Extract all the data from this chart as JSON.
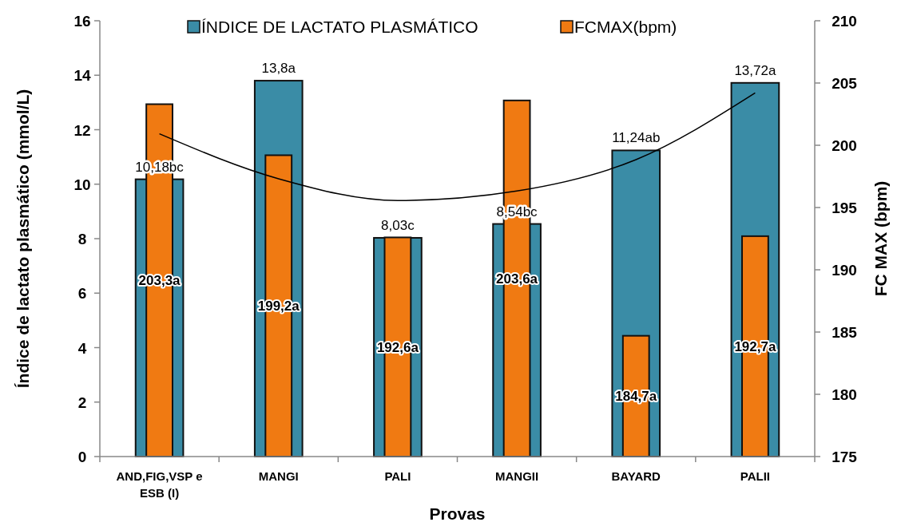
{
  "chart_data": {
    "type": "bar",
    "categories": [
      "AND,FIG,VSP e ESB (I)",
      "MANGI",
      "PALI",
      "MANGII",
      "BAYARD",
      "PALII"
    ],
    "series": [
      {
        "name": "ÍNDICE DE LACTATO PLASMÁTICO",
        "color": "#3a8ca6",
        "values": [
          10.18,
          13.8,
          8.03,
          8.54,
          11.24,
          13.72
        ],
        "value_labels": [
          "10,18bc",
          "13,8a",
          "8,03c",
          "8,54bc",
          "11,24ab",
          "13,72a"
        ]
      },
      {
        "name": "FCMAX(bpm)",
        "color": "#f07a12",
        "axis": "y2",
        "values": [
          203.3,
          199.2,
          192.6,
          203.6,
          184.7,
          192.7
        ],
        "value_labels": [
          "203,3a",
          "199,2a",
          "192,6a",
          "203,6a",
          "184,7a",
          "192,7a"
        ]
      },
      {
        "type": "line",
        "color": "#000000",
        "values": [
          11.85,
          10.2,
          9.4,
          9.75,
          10.9,
          13.35
        ]
      }
    ],
    "xlabel": "Provas",
    "ylabel": "Índice de lactato plasmático (mmol/L)",
    "y2label": "FC MAX (bpm)",
    "ylim": [
      0,
      16
    ],
    "yticks": [
      0,
      2,
      4,
      6,
      8,
      10,
      12,
      14,
      16
    ],
    "y2lim": [
      175,
      210
    ],
    "y2ticks": [
      175,
      180,
      185,
      190,
      195,
      200,
      205,
      210
    ],
    "legend": "top",
    "grid": false
  }
}
